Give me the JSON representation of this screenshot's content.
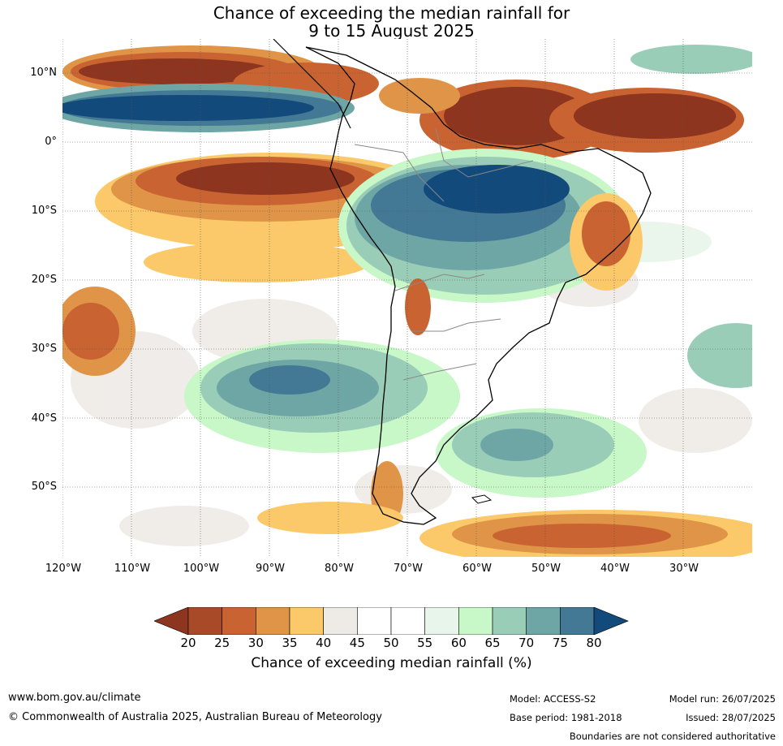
{
  "title_line1": "Chance of exceeding the median rainfall for",
  "title_line2": "9 to 15 August 2025",
  "lat_labels": [
    "10°N",
    "0°",
    "10°S",
    "20°S",
    "30°S",
    "40°S",
    "50°S"
  ],
  "lon_labels": [
    "120°W",
    "110°W",
    "100°W",
    "90°W",
    "80°W",
    "70°W",
    "60°W",
    "50°W",
    "40°W",
    "30°W"
  ],
  "colorbar": {
    "ticks": [
      "20",
      "25",
      "30",
      "35",
      "40",
      "45",
      "50",
      "55",
      "60",
      "65",
      "70",
      "75",
      "80"
    ],
    "colors": [
      "#a84a28",
      "#c96432",
      "#e09448",
      "#fbc969",
      "#eeebe7",
      "#ffffff",
      "#ffffff",
      "#e8f5ea",
      "#c8f7c8",
      "#9acdb8",
      "#6ea6a6",
      "#437994"
    ],
    "under_color": "#8e3520",
    "over_color": "#124a7c",
    "title": "Chance of exceeding median rainfall (%)"
  },
  "footer": {
    "website": "www.bom.gov.au/climate",
    "copyright": "© Commonwealth of Australia 2025, Australian Bureau of Meteorology",
    "model": "Model: ACCESS-S2",
    "base_period": "Base period: 1981-2018",
    "model_run": "Model run: 26/07/2025",
    "issued": "Issued: 28/07/2025",
    "disclaimer": "Boundaries are not considered authoritative"
  }
}
